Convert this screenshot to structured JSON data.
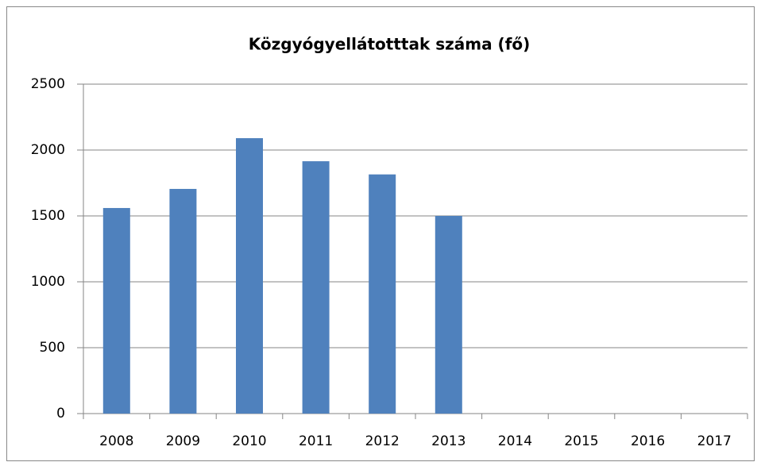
{
  "chart_data": {
    "type": "bar",
    "title": "Közgyógyellátotttak száma (fő)",
    "categories": [
      "2008",
      "2009",
      "2010",
      "2011",
      "2012",
      "2013",
      "2014",
      "2015",
      "2016",
      "2017"
    ],
    "values": [
      1560,
      1705,
      2090,
      1915,
      1815,
      1500,
      null,
      null,
      null,
      null
    ],
    "color": "#4f81bd",
    "ylim": [
      0,
      2500
    ],
    "yticks": [
      0,
      500,
      1000,
      1500,
      2000,
      2500
    ],
    "grid": true
  }
}
